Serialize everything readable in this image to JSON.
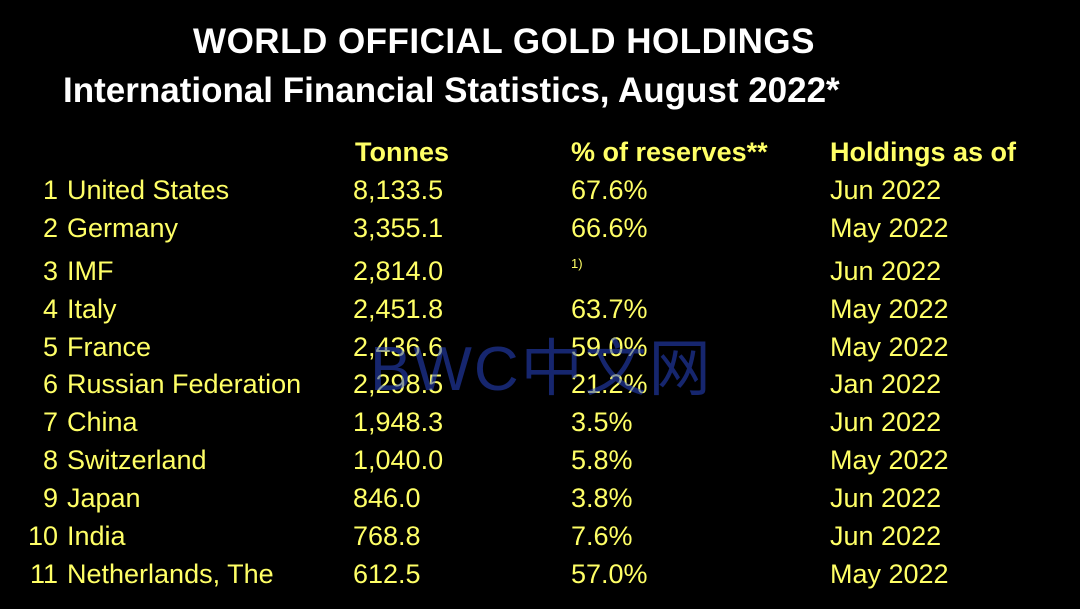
{
  "title": "WORLD OFFICIAL GOLD HOLDINGS",
  "subtitle": "International Financial Statistics, August 2022*",
  "columns": {
    "tonnes": "Tonnes",
    "reserves": "% of reserves**",
    "as_of": "Holdings as of"
  },
  "rows": [
    {
      "rank": "1",
      "country": "United States",
      "tonnes": "8,133.5",
      "reserves": "67.6%",
      "as_of": "Jun 2022"
    },
    {
      "rank": "2",
      "country": "Germany",
      "tonnes": "3,355.1",
      "reserves": "66.6%",
      "as_of": "May 2022"
    },
    {
      "rank": "3",
      "country": "IMF",
      "tonnes": "2,814.0",
      "reserves": "1)",
      "as_of": "Jun 2022"
    },
    {
      "rank": "4",
      "country": "Italy",
      "tonnes": "2,451.8",
      "reserves": "63.7%",
      "as_of": "May 2022"
    },
    {
      "rank": "5",
      "country": "France",
      "tonnes": "2,436.6",
      "reserves": "59.0%",
      "as_of": "May 2022"
    },
    {
      "rank": "6",
      "country": "Russian Federation",
      "tonnes": "2,298.5",
      "reserves": "21.2%",
      "as_of": "Jan 2022"
    },
    {
      "rank": "7",
      "country": "China",
      "tonnes": "1,948.3",
      "reserves": "3.5%",
      "as_of": "Jun 2022"
    },
    {
      "rank": "8",
      "country": "Switzerland",
      "tonnes": "1,040.0",
      "reserves": "5.8%",
      "as_of": "May 2022"
    },
    {
      "rank": "9",
      "country": "Japan",
      "tonnes": "846.0",
      "reserves": "3.8%",
      "as_of": "Jun 2022"
    },
    {
      "rank": "10",
      "country": "India",
      "tonnes": "768.8",
      "reserves": "7.6%",
      "as_of": "Jun 2022"
    },
    {
      "rank": "11",
      "country": "Netherlands, The",
      "tonnes": "612.5",
      "reserves": "57.0%",
      "as_of": "May 2022"
    }
  ],
  "watermark": "BWC中文网",
  "colors": {
    "background": "#000000",
    "title": "#ffffff",
    "table_text": "#ffff66",
    "watermark": "#2846c8"
  }
}
